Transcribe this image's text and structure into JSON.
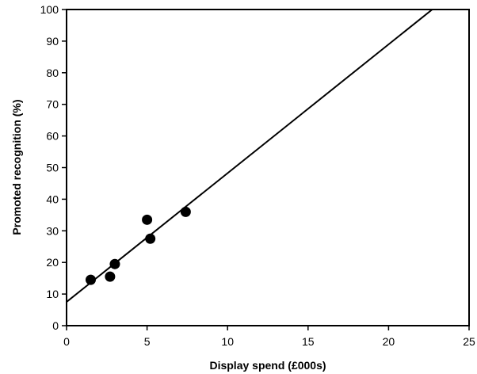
{
  "chart_data": {
    "type": "scatter",
    "title": "",
    "xlabel": "Display spend (£000s)",
    "ylabel": "Promoted recognition (%)",
    "xlim": [
      0,
      25
    ],
    "ylim": [
      0,
      100
    ],
    "xticks": [
      0,
      5,
      10,
      15,
      20,
      25
    ],
    "yticks": [
      0,
      10,
      20,
      30,
      40,
      50,
      60,
      70,
      80,
      90,
      100
    ],
    "grid": false,
    "legend": "none",
    "points": [
      {
        "x": 1.5,
        "y": 14.5
      },
      {
        "x": 2.7,
        "y": 15.5
      },
      {
        "x": 3.0,
        "y": 19.5
      },
      {
        "x": 5.0,
        "y": 33.5
      },
      {
        "x": 5.2,
        "y": 27.5
      },
      {
        "x": 7.4,
        "y": 36.0
      }
    ],
    "trendline": {
      "type": "linear",
      "points": [
        {
          "x": 0,
          "y": 7.5
        },
        {
          "x": 23.2,
          "y": 102
        }
      ]
    },
    "colors": {
      "points": "#000000",
      "line": "#000000",
      "axes": "#000000"
    }
  }
}
